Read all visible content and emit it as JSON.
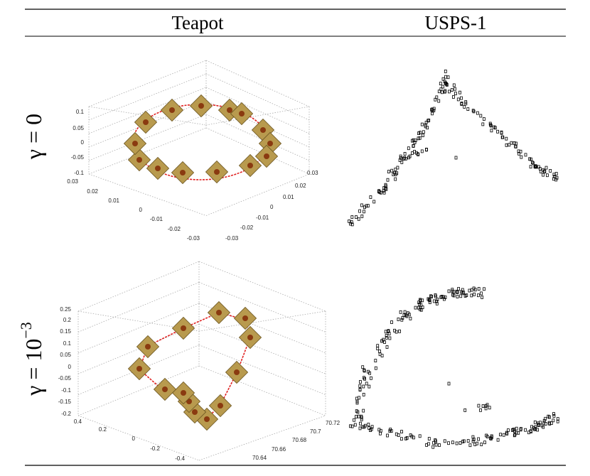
{
  "table": {
    "headers": [
      "Teapot",
      "USPS-1"
    ],
    "rows": [
      {
        "label": "γ = 0",
        "plot": {
          "z_ticks": [
            "0.1",
            "0.05",
            "0",
            "-0.05",
            "-0.1"
          ],
          "left_ticks": [
            "0.03",
            "0.02",
            "0.01",
            "0",
            "-0.01",
            "-0.02",
            "-0.03"
          ],
          "right_ticks": [
            "0.03",
            "0.02",
            "0.01",
            "0",
            "-0.01",
            "-0.02",
            "-0.03"
          ]
        }
      },
      {
        "label": "γ = 10",
        "label_exponent": "−3",
        "plot": {
          "z_ticks": [
            "0.25",
            "0.2",
            "0.15",
            "0.1",
            "0.05",
            "0",
            "-0.05",
            "-0.1",
            "-0.15",
            "-0.2"
          ],
          "left_ticks": [
            "0.4",
            "0.2",
            "0",
            "-0.2",
            "-0.4"
          ],
          "right_ticks": [
            "70.72",
            "70.7",
            "70.68",
            "70.66",
            "70.64"
          ]
        }
      }
    ]
  }
}
